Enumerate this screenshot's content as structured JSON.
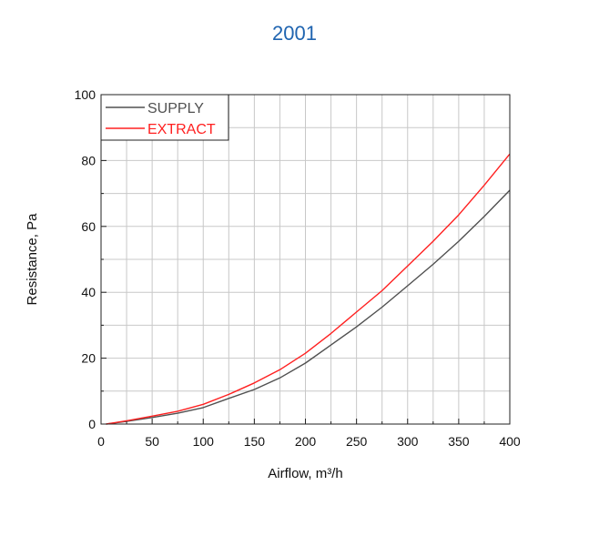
{
  "heading": "2001",
  "chart_data": {
    "type": "line",
    "xlabel": "Airflow, m³/h",
    "ylabel": "Resistance, Pa",
    "xlim": [
      0,
      400
    ],
    "ylim": [
      0,
      100
    ],
    "xticks": [
      0,
      50,
      100,
      150,
      200,
      250,
      300,
      350,
      400
    ],
    "yticks": [
      0,
      20,
      40,
      60,
      80,
      100
    ],
    "grid": true,
    "legend_position": "top-left",
    "series": [
      {
        "name": "SUPPLY",
        "color": "#505050",
        "x": [
          5,
          25,
          50,
          75,
          100,
          125,
          150,
          175,
          200,
          225,
          250,
          275,
          300,
          325,
          350,
          375,
          400
        ],
        "y": [
          0,
          0.8,
          2,
          3.3,
          5,
          7.8,
          10.5,
          14,
          18.5,
          24,
          29.5,
          35.5,
          42,
          48.5,
          55.5,
          63,
          71
        ]
      },
      {
        "name": "EXTRACT",
        "color": "#ff2020",
        "x": [
          5,
          25,
          50,
          75,
          100,
          125,
          150,
          175,
          200,
          225,
          250,
          275,
          300,
          325,
          350,
          375,
          400
        ],
        "y": [
          0,
          1,
          2.4,
          3.9,
          6,
          9,
          12.5,
          16.5,
          21.5,
          27.5,
          34,
          40.5,
          48,
          55.5,
          63.5,
          72.5,
          82
        ]
      }
    ]
  }
}
